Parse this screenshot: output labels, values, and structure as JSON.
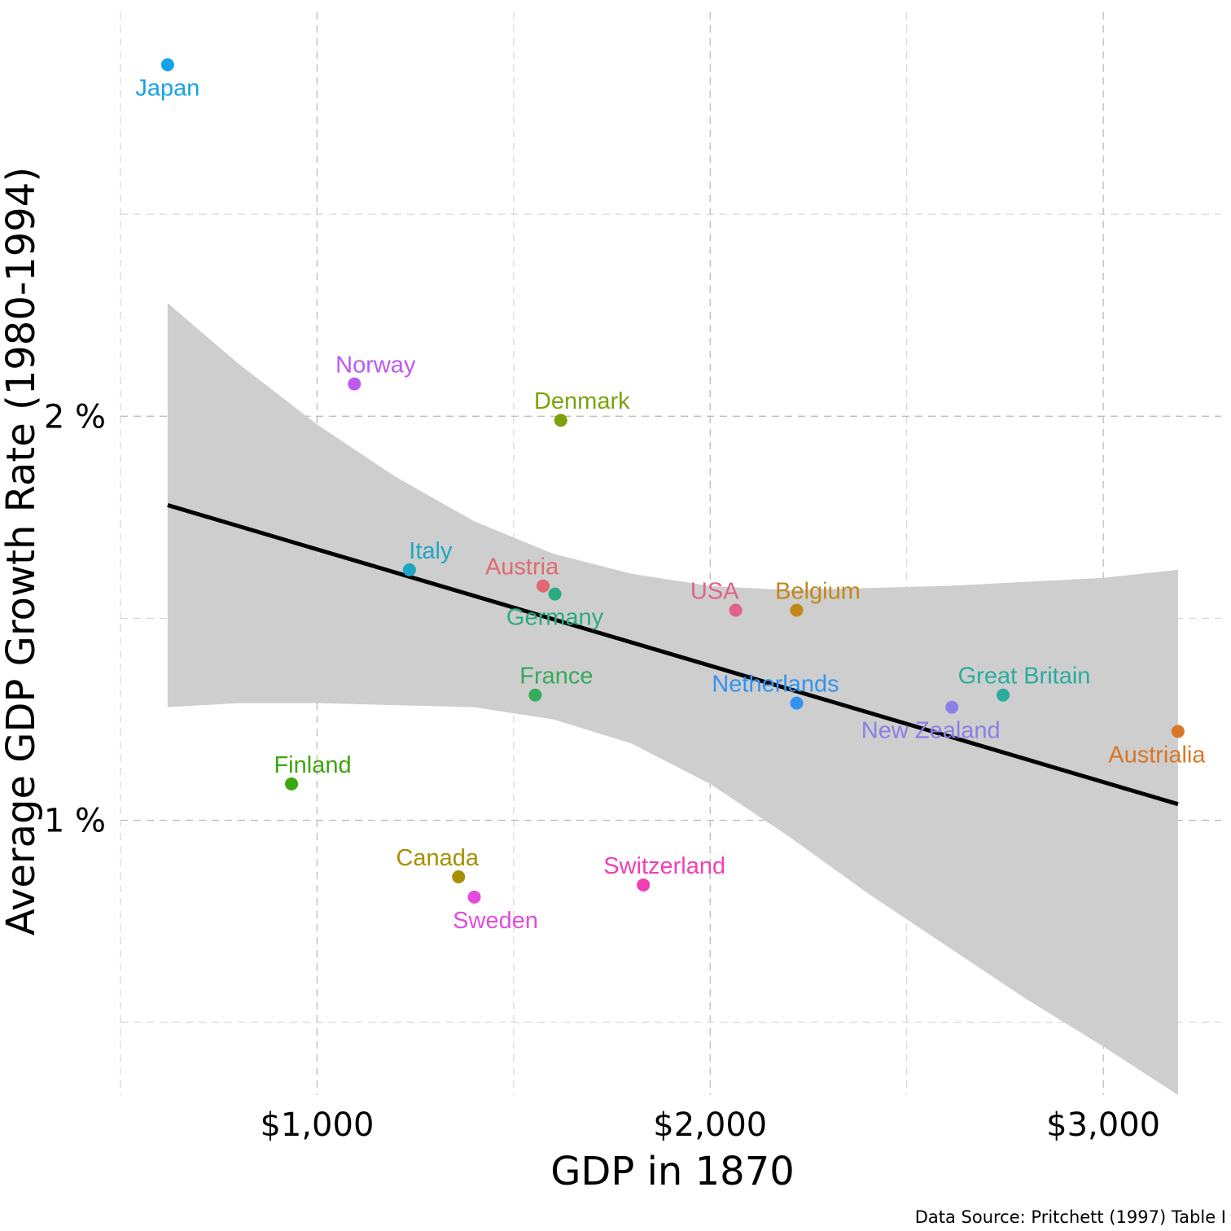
{
  "chart_data": {
    "type": "scatter",
    "title": "",
    "xlabel": "GDP in 1870",
    "ylabel": "Average GDP Growth Rate (1980-1994)",
    "caption": "Data Source: Pritchett (1997) Table I",
    "xlim": [
      500,
      3300
    ],
    "ylim": [
      0.32,
      3.0
    ],
    "x_ticks": [
      {
        "value": 1000,
        "label": "$1,000"
      },
      {
        "value": 2000,
        "label": "$2,000"
      },
      {
        "value": 3000,
        "label": "$3,000"
      }
    ],
    "y_ticks": [
      {
        "value": 1,
        "label": "1 %"
      },
      {
        "value": 2,
        "label": "2 %"
      }
    ],
    "x_minor": [
      500,
      1500,
      2500
    ],
    "y_minor": [
      0.5,
      1.5,
      2.5
    ],
    "grid": true,
    "legend": "none",
    "points": [
      {
        "name": "Japan",
        "x": 620,
        "y": 2.87,
        "color": "#16a2e9",
        "label_pos": "below"
      },
      {
        "name": "Norway",
        "x": 1095,
        "y": 2.08,
        "color": "#bd5af0",
        "label_pos": "above-right"
      },
      {
        "name": "Denmark",
        "x": 1620,
        "y": 1.99,
        "color": "#7aa30c",
        "label_pos": "above-right"
      },
      {
        "name": "Italy",
        "x": 1235,
        "y": 1.62,
        "color": "#20a6c2",
        "label_pos": "above-right"
      },
      {
        "name": "Austria",
        "x": 1575,
        "y": 1.58,
        "color": "#e06a6e",
        "label_pos": "above-left"
      },
      {
        "name": "Germany",
        "x": 1605,
        "y": 1.56,
        "color": "#2bab80",
        "label_pos": "below"
      },
      {
        "name": "USA",
        "x": 2065,
        "y": 1.52,
        "color": "#e06389",
        "label_pos": "above-left"
      },
      {
        "name": "Belgium",
        "x": 2220,
        "y": 1.52,
        "color": "#c1871d",
        "label_pos": "above-right"
      },
      {
        "name": "France",
        "x": 1555,
        "y": 1.31,
        "color": "#36ab5a",
        "label_pos": "above-right"
      },
      {
        "name": "Netherlands",
        "x": 2220,
        "y": 1.29,
        "color": "#3393f0",
        "label_pos": "above-left"
      },
      {
        "name": "Great Britain",
        "x": 2745,
        "y": 1.31,
        "color": "#2bac9f",
        "label_pos": "above-right"
      },
      {
        "name": "New Zealand",
        "x": 2615,
        "y": 1.28,
        "color": "#8c7fe8",
        "label_pos": "below-left"
      },
      {
        "name": "Austrialia",
        "x": 3190,
        "y": 1.22,
        "color": "#d87727",
        "label_pos": "below-left"
      },
      {
        "name": "Finland",
        "x": 935,
        "y": 1.09,
        "color": "#3ba60c",
        "label_pos": "above-right"
      },
      {
        "name": "Canada",
        "x": 1360,
        "y": 0.86,
        "color": "#a59102",
        "label_pos": "above-left"
      },
      {
        "name": "Sweden",
        "x": 1400,
        "y": 0.81,
        "color": "#e34cde",
        "label_pos": "below-right"
      },
      {
        "name": "Switzerland",
        "x": 1830,
        "y": 0.84,
        "color": "#f23fb3",
        "label_pos": "above-right"
      }
    ],
    "regression": {
      "x": [
        620,
        3190
      ],
      "y": [
        1.78,
        1.04
      ],
      "color": "#000000"
    },
    "confidence_band": {
      "x": [
        620,
        800,
        1000,
        1200,
        1400,
        1600,
        1800,
        2000,
        2200,
        2400,
        2600,
        2800,
        3000,
        3190
      ],
      "upper": [
        2.28,
        2.13,
        1.98,
        1.85,
        1.74,
        1.66,
        1.61,
        1.58,
        1.57,
        1.575,
        1.58,
        1.59,
        1.6,
        1.62
      ],
      "lower": [
        1.28,
        1.29,
        1.29,
        1.285,
        1.28,
        1.25,
        1.19,
        1.09,
        0.96,
        0.82,
        0.69,
        0.56,
        0.44,
        0.32
      ],
      "color": "#cecece"
    }
  }
}
